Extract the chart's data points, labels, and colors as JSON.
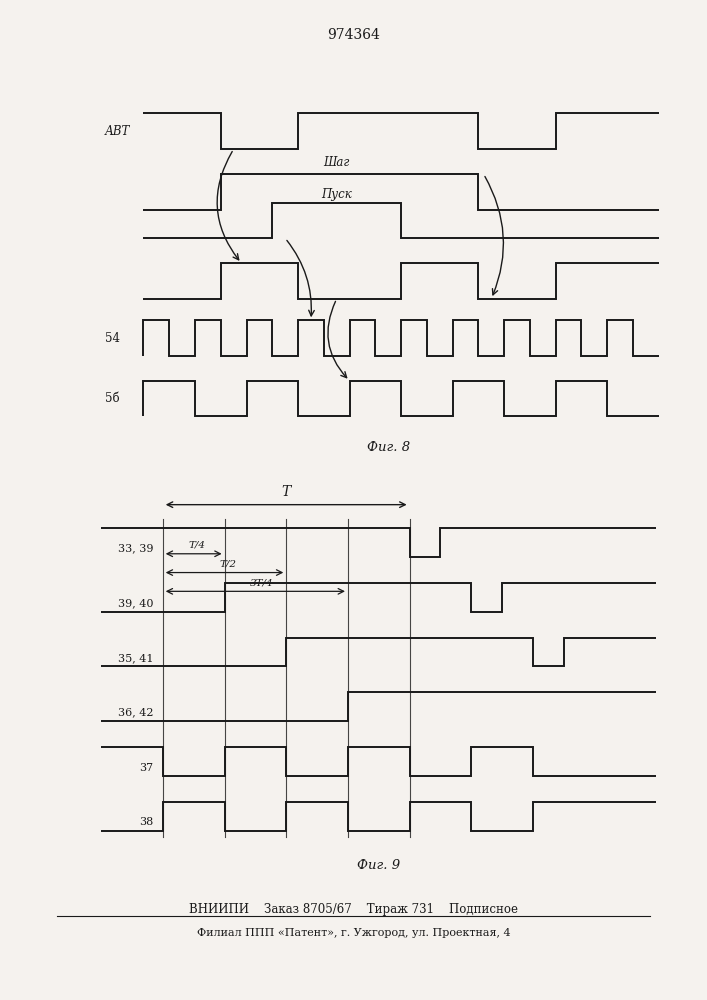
{
  "title": "974364",
  "bg_color": "#f5f2ee",
  "line_color": "#1a1a1a",
  "lw": 1.4,
  "footer_line1": "ВНИИПИ    Заказ 8705/67    Тираж 731    Подписное",
  "footer_line2": "Филиал ППП «Патент», г. Ужгород, ул. Проектная, 4"
}
